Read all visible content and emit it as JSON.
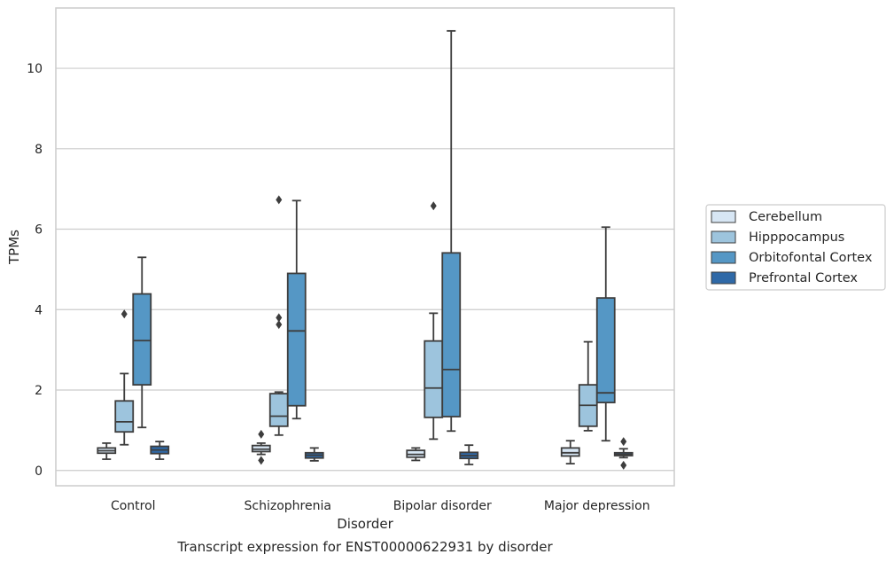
{
  "chart_data": {
    "type": "box",
    "title": "",
    "caption": "Transcript expression for ENST00000622931 by disorder",
    "xlabel": "Disorder",
    "ylabel": "TPMs",
    "ylim": [
      -0.38,
      11.5
    ],
    "yticks": [
      0,
      2,
      4,
      6,
      8,
      10
    ],
    "grid": "horizontal",
    "legend_position": "right",
    "categories": [
      "Control",
      "Schizophrenia",
      "Bipolar disorder",
      "Major depression"
    ],
    "series": [
      {
        "name": "Cerebellum",
        "color": "#d7e6f4",
        "boxes": [
          {
            "whislo": 0.28,
            "q1": 0.43,
            "med": 0.49,
            "q3": 0.56,
            "whishi": 0.68,
            "fliers": []
          },
          {
            "whislo": 0.4,
            "q1": 0.47,
            "med": 0.53,
            "q3": 0.62,
            "whishi": 0.68,
            "fliers": [
              0.9,
              0.25
            ]
          },
          {
            "whislo": 0.25,
            "q1": 0.33,
            "med": 0.4,
            "q3": 0.5,
            "whishi": 0.56,
            "fliers": []
          },
          {
            "whislo": 0.17,
            "q1": 0.36,
            "med": 0.44,
            "q3": 0.56,
            "whishi": 0.74,
            "fliers": []
          }
        ]
      },
      {
        "name": "Hipppocampus",
        "color": "#9dc4dd",
        "boxes": [
          {
            "whislo": 0.64,
            "q1": 0.96,
            "med": 1.21,
            "q3": 1.73,
            "whishi": 2.41,
            "fliers": [
              3.89
            ]
          },
          {
            "whislo": 0.88,
            "q1": 1.1,
            "med": 1.35,
            "q3": 1.91,
            "whishi": 1.95,
            "fliers": [
              3.8,
              3.63,
              6.73
            ]
          },
          {
            "whislo": 0.78,
            "q1": 1.32,
            "med": 2.05,
            "q3": 3.22,
            "whishi": 3.91,
            "fliers": [
              6.58
            ]
          },
          {
            "whislo": 0.99,
            "q1": 1.1,
            "med": 1.62,
            "q3": 2.13,
            "whishi": 3.2,
            "fliers": []
          }
        ]
      },
      {
        "name": "Orbitofontal Cortex",
        "color": "#5597c5",
        "boxes": [
          {
            "whislo": 1.07,
            "q1": 2.13,
            "med": 3.23,
            "q3": 4.39,
            "whishi": 5.3,
            "fliers": []
          },
          {
            "whislo": 1.29,
            "q1": 1.61,
            "med": 3.47,
            "q3": 4.9,
            "whishi": 6.71,
            "fliers": []
          },
          {
            "whislo": 0.98,
            "q1": 1.34,
            "med": 2.51,
            "q3": 5.41,
            "whishi": 10.93,
            "fliers": []
          },
          {
            "whislo": 0.74,
            "q1": 1.69,
            "med": 1.93,
            "q3": 4.29,
            "whishi": 6.05,
            "fliers": []
          }
        ]
      },
      {
        "name": "Prefrontal Cortex",
        "color": "#2f69a7",
        "boxes": [
          {
            "whislo": 0.28,
            "q1": 0.42,
            "med": 0.51,
            "q3": 0.6,
            "whishi": 0.72,
            "fliers": []
          },
          {
            "whislo": 0.24,
            "q1": 0.31,
            "med": 0.38,
            "q3": 0.44,
            "whishi": 0.56,
            "fliers": []
          },
          {
            "whislo": 0.15,
            "q1": 0.3,
            "med": 0.37,
            "q3": 0.45,
            "whishi": 0.63,
            "fliers": []
          },
          {
            "whislo": 0.32,
            "q1": 0.37,
            "med": 0.4,
            "q3": 0.44,
            "whishi": 0.54,
            "fliers": [
              0.72,
              0.13
            ]
          }
        ]
      }
    ]
  }
}
